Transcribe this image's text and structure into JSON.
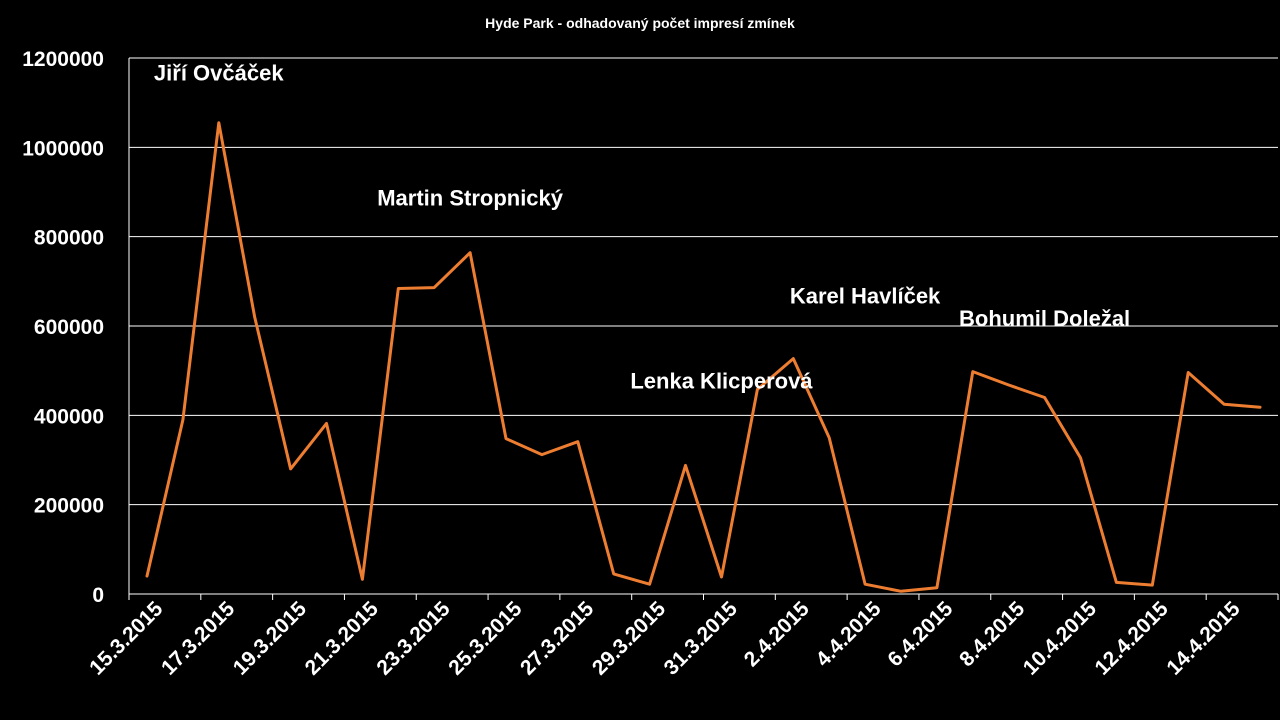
{
  "chart_data": {
    "type": "line",
    "title": "Hyde Park - odhadovaný počet impresí zmínek",
    "xlabel": "",
    "ylabel": "",
    "ylim": [
      0,
      1200000
    ],
    "yticks": [
      0,
      200000,
      400000,
      600000,
      800000,
      1000000,
      1200000
    ],
    "ytick_labels": [
      "0",
      "200000",
      "400000",
      "600000",
      "800000",
      "1000000",
      "1200000"
    ],
    "grid": true,
    "legend": "none",
    "x_tick_labels": [
      "15.3.2015",
      "17.3.2015",
      "19.3.2015",
      "21.3.2015",
      "23.3.2015",
      "25.3.2015",
      "27.3.2015",
      "29.3.2015",
      "31.3.2015",
      "2.4.2015",
      "4.4.2015",
      "6.4.2015",
      "8.4.2015",
      "10.4.2015",
      "12.4.2015",
      "14.4.2015"
    ],
    "x": [
      "15.3.2015",
      "16.3.2015",
      "17.3.2015",
      "18.3.2015",
      "19.3.2015",
      "20.3.2015",
      "21.3.2015",
      "22.3.2015",
      "23.3.2015",
      "24.3.2015",
      "25.3.2015",
      "26.3.2015",
      "27.3.2015",
      "28.3.2015",
      "29.3.2015",
      "30.3.2015",
      "31.3.2015",
      "1.4.2015",
      "2.4.2015",
      "3.4.2015",
      "4.4.2015",
      "5.4.2015",
      "6.4.2015",
      "7.4.2015",
      "8.4.2015",
      "9.4.2015",
      "10.4.2015",
      "11.4.2015",
      "12.4.2015",
      "13.4.2015",
      "14.4.2015",
      "15.4.2015"
    ],
    "series": [
      {
        "color": "#ED7D31",
        "values": [
          40000,
          390000,
          1055000,
          620000,
          280000,
          382000,
          33000,
          684000,
          686000,
          764000,
          348000,
          312000,
          341000,
          45000,
          22000,
          288000,
          38000,
          458000,
          527000,
          350000,
          22000,
          6000,
          14000,
          498000,
          468000,
          440000,
          305000,
          26000,
          20000,
          496000,
          425000,
          418000
        ]
      }
    ],
    "annotations": [
      {
        "text": "Jiří Ovčáček",
        "x": "17.3.2015",
        "y": 1150000
      },
      {
        "text": "Martin Stropnický",
        "x": "24.3.2015",
        "y": 870000
      },
      {
        "text": "Lenka Klicperová",
        "x": "31.3.2015",
        "y": 460000
      },
      {
        "text": "Karel Havlíček",
        "x": "4.4.2015",
        "y": 650000
      },
      {
        "text": "Bohumil Doležal",
        "x": "9.4.2015",
        "y": 600000
      }
    ]
  }
}
